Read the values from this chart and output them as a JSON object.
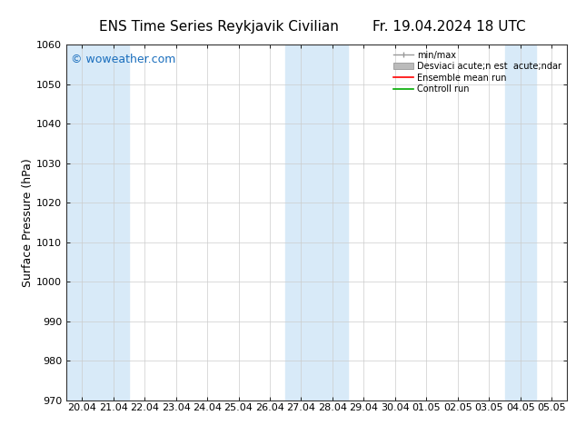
{
  "title_left": "ENS Time Series Reykjavik Civilian",
  "title_right": "Fr. 19.04.2024 18 UTC",
  "ylabel": "Surface Pressure (hPa)",
  "ylim": [
    970,
    1060
  ],
  "yticks": [
    970,
    980,
    990,
    1000,
    1010,
    1020,
    1030,
    1040,
    1050,
    1060
  ],
  "x_tick_labels": [
    "20.04",
    "21.04",
    "22.04",
    "23.04",
    "24.04",
    "25.04",
    "26.04",
    "27.04",
    "28.04",
    "29.04",
    "30.04",
    "01.05",
    "02.05",
    "03.05",
    "04.05",
    "05.05"
  ],
  "x_tick_positions": [
    0,
    1,
    2,
    3,
    4,
    5,
    6,
    7,
    8,
    9,
    10,
    11,
    12,
    13,
    14,
    15
  ],
  "shaded_columns": [
    0,
    1,
    7,
    8,
    14
  ],
  "shaded_color": "#d8eaf8",
  "background_color": "#ffffff",
  "watermark": "© woweather.com",
  "watermark_color": "#1a6ebd",
  "legend_labels": [
    "min/max",
    "Desviaci acute;n est  acute;ndar",
    "Ensemble mean run",
    "Controll run"
  ],
  "legend_colors": [
    "#999999",
    "#bbbbbb",
    "#ff0000",
    "#00aa00"
  ],
  "title_fontsize": 11,
  "tick_fontsize": 8,
  "ylabel_fontsize": 9,
  "watermark_fontsize": 9,
  "legend_fontsize": 7,
  "figwidth": 6.34,
  "figheight": 4.9,
  "dpi": 100
}
